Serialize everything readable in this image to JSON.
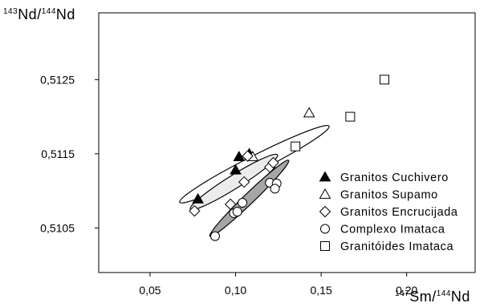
{
  "chart_data": {
    "type": "scatter",
    "title": "",
    "xlabel": {
      "sup1": "147",
      "main1": "Sm/",
      "sup2": "144",
      "main2": "Nd"
    },
    "ylabel": {
      "sup1": "143",
      "main1": "Nd/",
      "sup2": "144",
      "main2": "Nd"
    },
    "xlim": [
      0.02,
      0.24
    ],
    "ylim": [
      0.5099,
      0.5134
    ],
    "xticks": [
      {
        "value": 0.05,
        "label": "0,05"
      },
      {
        "value": 0.1,
        "label": "0,10"
      },
      {
        "value": 0.15,
        "label": "0,15"
      },
      {
        "value": 0.2,
        "label": "0,20"
      }
    ],
    "yticks": [
      {
        "value": 0.5105,
        "label": "0,5105"
      },
      {
        "value": 0.5115,
        "label": "0,5115"
      },
      {
        "value": 0.5125,
        "label": "0,5125"
      }
    ],
    "legend_position": "bottom-right",
    "series": [
      {
        "name": "Granitos Cuchivero",
        "marker": "triangle-filled",
        "points": [
          [
            0.078,
            0.51089
          ],
          [
            0.1,
            0.51128
          ],
          [
            0.102,
            0.51146
          ],
          [
            0.108,
            0.5115
          ]
        ]
      },
      {
        "name": "Granitos Supamo",
        "marker": "triangle-open",
        "points": [
          [
            0.143,
            0.51205
          ],
          [
            0.11,
            0.51146
          ]
        ]
      },
      {
        "name": "Granitos Encrucijada",
        "marker": "diamond-open",
        "points": [
          [
            0.076,
            0.51073
          ],
          [
            0.097,
            0.51082
          ],
          [
            0.105,
            0.51112
          ],
          [
            0.12,
            0.51132
          ],
          [
            0.122,
            0.51138
          ],
          [
            0.107,
            0.51147
          ]
        ]
      },
      {
        "name": "Complexo Imataca",
        "marker": "circle-open",
        "points": [
          [
            0.088,
            0.51039
          ],
          [
            0.099,
            0.5107
          ],
          [
            0.101,
            0.51072
          ],
          [
            0.104,
            0.51084
          ],
          [
            0.12,
            0.51111
          ],
          [
            0.124,
            0.5111
          ],
          [
            0.123,
            0.51103
          ]
        ]
      },
      {
        "name": "Granitóides Imataca",
        "marker": "square-open",
        "points": [
          [
            0.135,
            0.5116
          ],
          [
            0.167,
            0.512
          ],
          [
            0.187,
            0.5125
          ]
        ]
      }
    ],
    "regions": [
      {
        "kind": "outline",
        "fill": "#ffffff",
        "center": [
          0.111,
          0.51136
        ],
        "semi_axes_data": [
          0.049,
          0.00011
        ],
        "angle": 27
      },
      {
        "kind": "shaded",
        "fill": "#ececec",
        "center": [
          0.099,
          0.51112
        ],
        "semi_axes_data": [
          0.03,
          9e-05
        ],
        "angle": 32
      },
      {
        "kind": "shaded",
        "fill": "#a6a6a6",
        "center": [
          0.108,
          0.5109
        ],
        "semi_axes_data": [
          0.032,
          7e-05
        ],
        "angle": 44
      }
    ]
  },
  "colors": {
    "axis": "#000000",
    "marker_fill": "#ffffff",
    "marker_filled": "#000000"
  }
}
